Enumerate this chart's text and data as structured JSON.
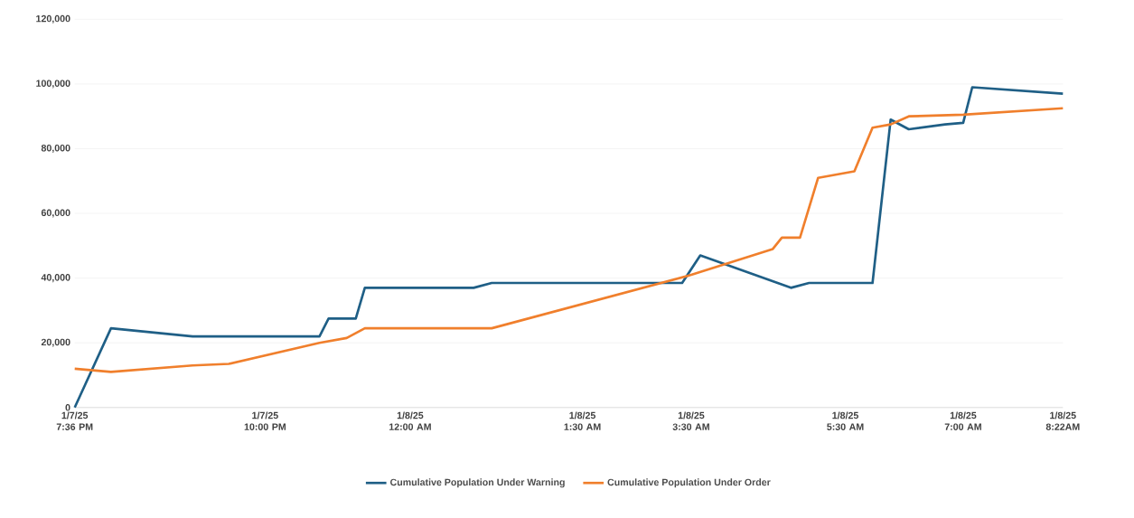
{
  "chart_data": {
    "type": "line",
    "categories": [
      "1/7/25 7:36 PM",
      null,
      null,
      null,
      null,
      null,
      null,
      null,
      null,
      null,
      null,
      null,
      null,
      null,
      null,
      null,
      null,
      null,
      null,
      null,
      null,
      "1/7/25 10:00 PM",
      null,
      null,
      null,
      null,
      null,
      null,
      null,
      null,
      null,
      null,
      null,
      null,
      null,
      null,
      null,
      "1/8/25 12:00 AM",
      null,
      null,
      null,
      null,
      null,
      null,
      null,
      null,
      null,
      null,
      null,
      null,
      null,
      null,
      null,
      null,
      null,
      null,
      "1/8/25 1:30 AM",
      null,
      null,
      null,
      null,
      null,
      null,
      null,
      null,
      null,
      null,
      null,
      "1/8/25 3:30 AM",
      null,
      null,
      null,
      null,
      null,
      null,
      null,
      null,
      null,
      null,
      null,
      null,
      null,
      null,
      null,
      null,
      "1/8/25 5:30 AM",
      null,
      null,
      null,
      null,
      null,
      null,
      null,
      null,
      null,
      null,
      null,
      null,
      "1/8/25 7:00 AM",
      null,
      null,
      null,
      null,
      null,
      null,
      null,
      null,
      null,
      null,
      "1/8/25 8:22AM"
    ],
    "series": [
      {
        "name": "Cumulative Population Under Warning",
        "color": "#1f5f86",
        "values": [
          0,
          null,
          null,
          null,
          24500,
          null,
          null,
          null,
          null,
          null,
          null,
          null,
          null,
          22000,
          null,
          null,
          null,
          null,
          null,
          null,
          null,
          null,
          null,
          null,
          null,
          null,
          null,
          22000,
          27500,
          null,
          null,
          27500,
          37000,
          null,
          null,
          null,
          null,
          null,
          null,
          null,
          null,
          null,
          null,
          null,
          37000,
          null,
          38500,
          null,
          null,
          null,
          null,
          null,
          null,
          null,
          null,
          null,
          null,
          null,
          null,
          null,
          null,
          null,
          null,
          null,
          null,
          null,
          null,
          38500,
          null,
          47000,
          null,
          null,
          null,
          null,
          null,
          null,
          null,
          null,
          null,
          37000,
          null,
          38500,
          null,
          null,
          null,
          null,
          null,
          null,
          38500,
          null,
          89000,
          null,
          86000,
          null,
          null,
          null,
          87500,
          null,
          88000,
          99000,
          null,
          null,
          null,
          null,
          null,
          null,
          null,
          null,
          null,
          97000
        ]
      },
      {
        "name": "Cumulative Population Under Order",
        "color": "#f07f2c",
        "values": [
          12000,
          null,
          null,
          null,
          11000,
          null,
          null,
          null,
          null,
          null,
          null,
          null,
          null,
          13000,
          null,
          null,
          null,
          13500,
          null,
          null,
          null,
          null,
          null,
          null,
          null,
          null,
          null,
          20000,
          null,
          null,
          21500,
          null,
          24500,
          null,
          null,
          null,
          null,
          null,
          null,
          null,
          null,
          null,
          null,
          null,
          null,
          null,
          24500,
          null,
          null,
          null,
          null,
          null,
          null,
          null,
          null,
          null,
          null,
          null,
          null,
          null,
          null,
          null,
          null,
          null,
          null,
          null,
          null,
          null,
          41000,
          null,
          null,
          null,
          null,
          null,
          null,
          null,
          null,
          49000,
          52500,
          null,
          52500,
          null,
          71000,
          null,
          null,
          null,
          73000,
          null,
          86500,
          null,
          87500,
          null,
          90000,
          null,
          null,
          null,
          null,
          null,
          90500,
          null,
          null,
          null,
          null,
          null,
          null,
          null,
          null,
          null,
          null,
          92500
        ]
      }
    ],
    "ylim": [
      0,
      120000
    ],
    "yticks": [
      0,
      {
        "value": 20000,
        "label": "20,000"
      },
      {
        "value": 40000,
        "label": "40,000"
      },
      {
        "value": 60000,
        "label": "60,000"
      },
      {
        "value": 80000,
        "label": "80,000"
      },
      {
        "value": 100000,
        "label": "100,000"
      },
      {
        "value": 120000,
        "label": "120,000"
      }
    ],
    "grid": "y",
    "legend": "bottom",
    "marker": "none",
    "line_style": "solid"
  }
}
